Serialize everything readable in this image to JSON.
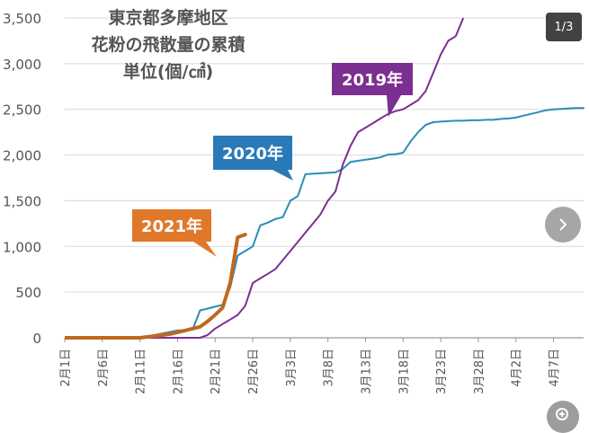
{
  "chart_data": {
    "type": "line",
    "title_lines": [
      "東京都多摩地区",
      "花粉の飛散量の累積",
      "単位(個/㎠)"
    ],
    "xlabel": "",
    "ylabel": "",
    "ylim": [
      0,
      3500
    ],
    "yticks": [
      0,
      500,
      1000,
      1500,
      2000,
      2500,
      3000,
      3500
    ],
    "ytick_labels": [
      "0",
      "500",
      "1,000",
      "1,500",
      "2,000",
      "2,500",
      "3,000",
      "3,500"
    ],
    "xlim": [
      0,
      69
    ],
    "xticks": [
      0,
      5,
      10,
      15,
      20,
      25,
      30,
      35,
      40,
      45,
      50,
      55,
      60,
      65
    ],
    "xtick_labels": [
      "2月1日",
      "2月6日",
      "2月11日",
      "2月16日",
      "2月21日",
      "2月26日",
      "3月3日",
      "3月8日",
      "3月13日",
      "3月18日",
      "3月23日",
      "3月28日",
      "4月2日",
      "4月7日"
    ],
    "grid": "horizontal",
    "series": [
      {
        "name": "2020年",
        "color": "#2a8db8",
        "x": [
          0,
          10,
          12,
          15,
          17,
          18,
          19,
          20,
          21,
          22,
          23,
          24,
          25,
          26,
          27,
          28,
          29,
          30,
          31,
          32,
          33,
          34,
          35,
          36,
          37,
          38,
          40,
          41,
          42,
          43,
          44,
          45,
          46,
          47,
          48,
          49,
          50,
          51,
          52,
          53,
          54,
          55,
          56,
          57,
          58,
          59,
          60,
          61,
          62,
          63,
          64,
          65,
          66,
          67,
          68,
          69
        ],
        "y": [
          0,
          0,
          30,
          80,
          90,
          300,
          320,
          340,
          360,
          550,
          900,
          950,
          1000,
          1230,
          1260,
          1300,
          1320,
          1500,
          1550,
          1790,
          1795,
          1800,
          1805,
          1810,
          1850,
          1925,
          1950,
          1960,
          1975,
          2005,
          2010,
          2025,
          2150,
          2250,
          2330,
          2360,
          2365,
          2370,
          2375,
          2375,
          2380,
          2380,
          2385,
          2385,
          2395,
          2400,
          2410,
          2430,
          2450,
          2470,
          2490,
          2500,
          2505,
          2510,
          2515,
          2515
        ]
      },
      {
        "name": "2019年",
        "color": "#7b2f91",
        "x": [
          0,
          18,
          19,
          20,
          21,
          22,
          23,
          24,
          25,
          26,
          27,
          28,
          29,
          30,
          31,
          32,
          33,
          34,
          35,
          36,
          37,
          38,
          39,
          40,
          41,
          42,
          43,
          44,
          45,
          46,
          47,
          48,
          49,
          50,
          51,
          52,
          53
        ],
        "y": [
          0,
          0,
          30,
          100,
          150,
          200,
          250,
          350,
          600,
          650,
          700,
          750,
          850,
          950,
          1050,
          1150,
          1250,
          1350,
          1500,
          1600,
          1900,
          2100,
          2250,
          2300,
          2350,
          2400,
          2450,
          2480,
          2500,
          2550,
          2600,
          2700,
          2900,
          3100,
          3250,
          3300,
          3500
        ]
      },
      {
        "name": "2021年",
        "color": "#c0681e",
        "x": [
          0,
          10,
          12,
          14,
          15,
          16,
          17,
          18,
          19,
          20,
          21,
          22,
          23,
          24
        ],
        "y": [
          0,
          0,
          20,
          40,
          60,
          80,
          100,
          120,
          180,
          250,
          330,
          600,
          1100,
          1130
        ]
      }
    ],
    "callouts": [
      {
        "series": "2020年",
        "label": "2020年",
        "color": "#2a7ab8"
      },
      {
        "series": "2019年",
        "label": "2019年",
        "color": "#7b2f91"
      },
      {
        "series": "2021年",
        "label": "2021年",
        "color": "#e0782a"
      }
    ]
  },
  "ui": {
    "counter": "1/3",
    "next_icon": "chevron-right-icon",
    "zoom_icon": "zoom-in-icon"
  }
}
